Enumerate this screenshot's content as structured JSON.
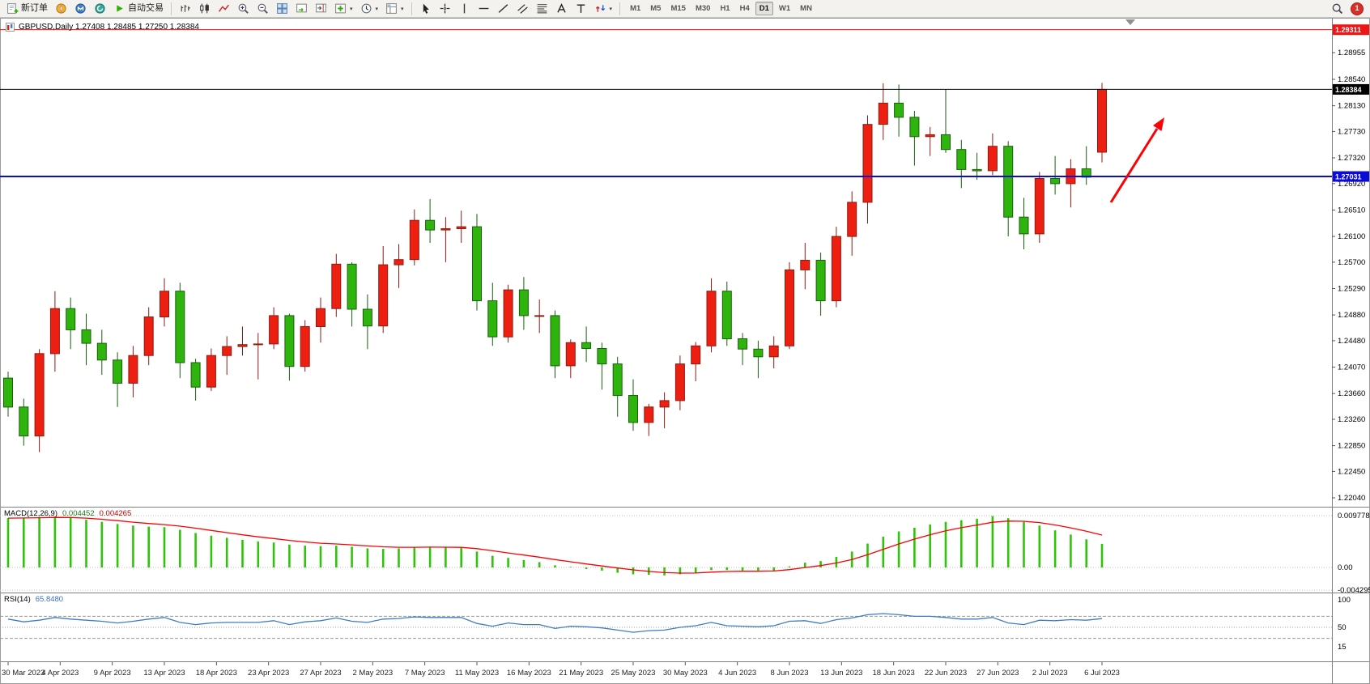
{
  "window": {
    "ohlc_title": "GBPUSD,Daily 1.27408 1.28485 1.27250 1.28384"
  },
  "toolbar": {
    "new_order_label": "新订单",
    "autotrading_label": "自动交易",
    "timeframes": [
      "M1",
      "M5",
      "M15",
      "M30",
      "H1",
      "H4",
      "D1",
      "W1",
      "MN"
    ],
    "active_timeframe": "D1",
    "notification_count": "1",
    "icons": [
      "new-order-icon",
      "compass-icon",
      "community-icon",
      "support-icon",
      "autotrading-play-icon",
      "bar-chart-icon",
      "candlestick-chart-icon",
      "line-chart-icon",
      "zoom-in-icon",
      "zoom-out-icon",
      "tile-windows-icon",
      "auto-scroll-icon",
      "chart-shift-icon",
      "add-indicator-icon",
      "periods-clock-icon",
      "templates-icon",
      "cursor-icon",
      "crosshair-icon",
      "vertical-line-icon",
      "horizontal-line-icon",
      "trendline-icon",
      "channel-icon",
      "fibonacci-icon",
      "text-icon",
      "label-icon",
      "arrows-icon",
      "search-icon",
      "notification-icon"
    ]
  },
  "chart_data": {
    "type": "candlestick",
    "symbol": "GBPUSD",
    "timeframe": "Daily",
    "current_ohlc": {
      "open": 1.27408,
      "high": 1.28485,
      "low": 1.2725,
      "close": 1.28384
    },
    "colors": {
      "up": "#ed1f10",
      "up_stroke": "#8f1a10",
      "down": "#2fb40e",
      "down_stroke": "#17610b",
      "macd_hist": "#2fc409",
      "macd_signal": "#ff0000",
      "rsi_line": "#3f7cc4",
      "bid_line": "#000000",
      "support_line": "#0b0bd6",
      "alert_line": "#ed1515",
      "arrow": "#fb0207"
    },
    "price_axis_labels": [
      "1.28955",
      "1.28540",
      "1.28130",
      "1.27730",
      "1.27320",
      "1.26920",
      "1.26510",
      "1.26100",
      "1.25700",
      "1.25290",
      "1.24880",
      "1.24480",
      "1.24070",
      "1.23660",
      "1.23260",
      "1.22850",
      "1.22450",
      "1.22040"
    ],
    "hlines": [
      {
        "name": "alert-line",
        "price": 1.29311,
        "label": "1.29311",
        "color": "#ed1515",
        "width": 1
      },
      {
        "name": "bid-price-line",
        "price": 1.28384,
        "label": "1.28384",
        "color": "#000000",
        "width": 1
      },
      {
        "name": "support-line",
        "price": 1.27031,
        "label": "1.27031",
        "color": "#0b0bd6",
        "width": 2
      }
    ],
    "x_axis_labels": [
      "30 Mar 2023",
      "4 Apr 2023",
      "9 Apr 2023",
      "13 Apr 2023",
      "18 Apr 2023",
      "23 Apr 2023",
      "27 Apr 2023",
      "2 May 2023",
      "7 May 2023",
      "11 May 2023",
      "16 May 2023",
      "21 May 2023",
      "25 May 2023",
      "30 May 2023",
      "4 Jun 2023",
      "8 Jun 2023",
      "13 Jun 2023",
      "18 Jun 2023",
      "22 Jun 2023",
      "27 Jun 2023",
      "2 Jul 2023",
      "6 Jul 2023"
    ],
    "candles": [
      [
        1.239,
        1.24,
        1.233,
        1.2345
      ],
      [
        1.2345,
        1.2358,
        1.2285,
        1.23
      ],
      [
        1.23,
        1.2435,
        1.2275,
        1.2428
      ],
      [
        1.2428,
        1.2525,
        1.24,
        1.2498
      ],
      [
        1.2498,
        1.2515,
        1.2435,
        1.2465
      ],
      [
        1.2465,
        1.249,
        1.241,
        1.2444
      ],
      [
        1.2444,
        1.2465,
        1.2395,
        1.2418
      ],
      [
        1.2418,
        1.243,
        1.2345,
        1.2382
      ],
      [
        1.2382,
        1.244,
        1.236,
        1.2425
      ],
      [
        1.2425,
        1.25,
        1.241,
        1.2485
      ],
      [
        1.2485,
        1.2545,
        1.247,
        1.2525
      ],
      [
        1.2525,
        1.2538,
        1.239,
        1.2414
      ],
      [
        1.2414,
        1.242,
        1.2355,
        1.2376
      ],
      [
        1.2376,
        1.2436,
        1.237,
        1.2425
      ],
      [
        1.2425,
        1.2455,
        1.2395,
        1.2439
      ],
      [
        1.2439,
        1.247,
        1.2425,
        1.2442
      ],
      [
        1.2442,
        1.246,
        1.2388,
        1.2443
      ],
      [
        1.2443,
        1.25,
        1.2435,
        1.2487
      ],
      [
        1.2487,
        1.249,
        1.2386,
        1.2408
      ],
      [
        1.2408,
        1.248,
        1.24,
        1.247
      ],
      [
        1.247,
        1.2515,
        1.2445,
        1.2498
      ],
      [
        1.2498,
        1.2583,
        1.2485,
        1.2567
      ],
      [
        1.2567,
        1.257,
        1.247,
        1.2497
      ],
      [
        1.2497,
        1.252,
        1.2435,
        1.2471
      ],
      [
        1.2471,
        1.2595,
        1.246,
        1.2566
      ],
      [
        1.2566,
        1.2598,
        1.253,
        1.2574
      ],
      [
        1.2574,
        1.2652,
        1.2565,
        1.2635
      ],
      [
        1.2635,
        1.2668,
        1.26,
        1.262
      ],
      [
        1.262,
        1.264,
        1.257,
        1.2622
      ],
      [
        1.2622,
        1.265,
        1.26,
        1.2625
      ],
      [
        1.2625,
        1.2645,
        1.2495,
        1.251
      ],
      [
        1.251,
        1.2538,
        1.244,
        1.2454
      ],
      [
        1.2454,
        1.2535,
        1.2445,
        1.2527
      ],
      [
        1.2527,
        1.2547,
        1.2465,
        1.2487
      ],
      [
        1.2487,
        1.2512,
        1.246,
        1.2487
      ],
      [
        1.2487,
        1.2495,
        1.239,
        1.2409
      ],
      [
        1.2409,
        1.245,
        1.239,
        1.2445
      ],
      [
        1.2445,
        1.247,
        1.2415,
        1.2436
      ],
      [
        1.2436,
        1.2445,
        1.2372,
        1.2412
      ],
      [
        1.2412,
        1.2423,
        1.233,
        1.2363
      ],
      [
        1.2363,
        1.2388,
        1.2308,
        1.2321
      ],
      [
        1.2321,
        1.235,
        1.23,
        1.2345
      ],
      [
        1.2345,
        1.2368,
        1.2312,
        1.2355
      ],
      [
        1.2355,
        1.2425,
        1.234,
        1.2412
      ],
      [
        1.2412,
        1.2446,
        1.2385,
        1.244
      ],
      [
        1.244,
        1.2545,
        1.243,
        1.2525
      ],
      [
        1.2525,
        1.254,
        1.244,
        1.2451
      ],
      [
        1.2451,
        1.246,
        1.241,
        1.2435
      ],
      [
        1.2435,
        1.2448,
        1.239,
        1.2423
      ],
      [
        1.2423,
        1.2455,
        1.2405,
        1.244
      ],
      [
        1.244,
        1.257,
        1.2435,
        1.2558
      ],
      [
        1.2558,
        1.26,
        1.2528,
        1.2573
      ],
      [
        1.2573,
        1.2585,
        1.2487,
        1.251
      ],
      [
        1.251,
        1.2625,
        1.25,
        1.261
      ],
      [
        1.261,
        1.268,
        1.258,
        1.2663
      ],
      [
        1.2663,
        1.2798,
        1.263,
        1.2784
      ],
      [
        1.2784,
        1.2848,
        1.276,
        1.2817
      ],
      [
        1.2817,
        1.2846,
        1.2765,
        1.2795
      ],
      [
        1.2795,
        1.2805,
        1.272,
        1.2765
      ],
      [
        1.2765,
        1.278,
        1.2735,
        1.2768
      ],
      [
        1.2768,
        1.2838,
        1.274,
        1.2745
      ],
      [
        1.2745,
        1.276,
        1.2685,
        1.2714
      ],
      [
        1.2714,
        1.274,
        1.2698,
        1.2712
      ],
      [
        1.2712,
        1.277,
        1.2705,
        1.275
      ],
      [
        1.275,
        1.2758,
        1.261,
        1.264
      ],
      [
        1.264,
        1.267,
        1.259,
        1.2614
      ],
      [
        1.2614,
        1.271,
        1.26,
        1.27
      ],
      [
        1.27,
        1.2735,
        1.2675,
        1.2692
      ],
      [
        1.2692,
        1.273,
        1.2655,
        1.2715
      ],
      [
        1.2715,
        1.275,
        1.269,
        1.2702
      ],
      [
        1.27408,
        1.28485,
        1.2725,
        1.28384
      ]
    ],
    "macd": {
      "label": "MACD(12,26,9)",
      "value_main": "0.004452",
      "value_signal": "0.004265",
      "scale_labels": [
        "0.009778",
        "0.00",
        "-0.004295"
      ],
      "hist": [
        0.0093,
        0.0094,
        0.0095,
        0.0096,
        0.0094,
        0.009,
        0.0086,
        0.0082,
        0.0079,
        0.0077,
        0.0076,
        0.0071,
        0.0065,
        0.006,
        0.0056,
        0.0052,
        0.0049,
        0.0047,
        0.0043,
        0.0041,
        0.004,
        0.0041,
        0.0039,
        0.0036,
        0.0035,
        0.0036,
        0.0038,
        0.0039,
        0.0038,
        0.0037,
        0.003,
        0.0022,
        0.0018,
        0.0014,
        0.001,
        0.0004,
        0.0001,
        -0.0003,
        -0.0006,
        -0.001,
        -0.0013,
        -0.0014,
        -0.0015,
        -0.0013,
        -0.001,
        -0.0005,
        -0.0005,
        -0.0006,
        -0.0007,
        -0.0006,
        0.0002,
        0.0009,
        0.0012,
        0.002,
        0.003,
        0.0045,
        0.0058,
        0.0068,
        0.0075,
        0.0081,
        0.0086,
        0.0089,
        0.0092,
        0.0097,
        0.0093,
        0.0086,
        0.0079,
        0.007,
        0.0062,
        0.0053,
        0.004452
      ]
    },
    "rsi": {
      "label": "RSI(14)",
      "value": "65.8480",
      "scale_labels": [
        "100",
        "50",
        "15"
      ],
      "levels": [
        70,
        50,
        30
      ],
      "values": [
        65,
        60,
        63,
        68,
        65,
        63,
        61,
        58,
        61,
        65,
        68,
        59,
        55,
        58,
        59,
        59,
        59,
        62,
        55,
        60,
        62,
        67,
        61,
        59,
        65,
        66,
        69,
        68,
        68,
        68,
        57,
        52,
        58,
        55,
        55,
        48,
        52,
        51,
        49,
        45,
        41,
        44,
        45,
        50,
        53,
        59,
        53,
        52,
        51,
        53,
        61,
        62,
        57,
        64,
        67,
        73,
        75,
        73,
        70,
        70,
        68,
        65,
        65,
        68,
        58,
        55,
        63,
        62,
        64,
        63,
        65.85
      ]
    },
    "annotations": {
      "trend_arrow": "up"
    }
  }
}
